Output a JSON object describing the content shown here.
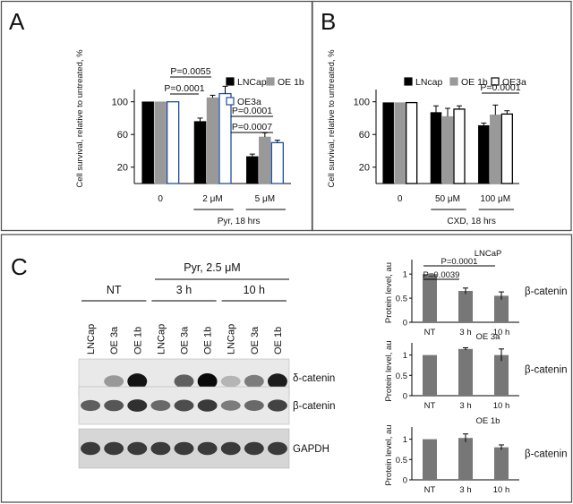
{
  "panels": {
    "A": {
      "letter": "A"
    },
    "B": {
      "letter": "B"
    },
    "C": {
      "letter": "C"
    }
  },
  "chart_data": [
    {
      "panel": "A",
      "type": "bar",
      "ylabel": "Cell survival, relative to untreated, %",
      "xlabel": "Pyr, 18 hrs",
      "categories": [
        "0",
        "2 μM",
        "5 μM"
      ],
      "yticks": [
        20,
        60,
        100
      ],
      "ylim": [
        0,
        115
      ],
      "grid": false,
      "legend_position": "top-right",
      "series": [
        {
          "name": "LNCap",
          "color": "#000000",
          "fill": "#000000",
          "values": [
            100,
            76,
            33
          ],
          "errors": [
            0,
            4,
            3
          ]
        },
        {
          "name": "OE 1b",
          "color": "#999999",
          "fill": "#999999",
          "values": [
            100,
            105,
            57
          ],
          "errors": [
            0,
            3,
            5
          ]
        },
        {
          "name": "OE3a",
          "color": "#1f4e9e",
          "fill": "#ffffff",
          "values": [
            100,
            110,
            50
          ],
          "errors": [
            0,
            9,
            3
          ]
        }
      ],
      "annotations": [
        "P=0.0055",
        "P=0.0001",
        "P=0.0001",
        "P=0.0007"
      ]
    },
    {
      "panel": "B",
      "type": "bar",
      "ylabel": "Cell survival, relative to untreated, %",
      "xlabel": "CXD, 18 hrs",
      "categories": [
        "0",
        "50 μM",
        "100 μM"
      ],
      "yticks": [
        20,
        60,
        100
      ],
      "ylim": [
        0,
        115
      ],
      "grid": false,
      "legend_position": "top",
      "series": [
        {
          "name": "LNcap",
          "color": "#000000",
          "fill": "#000000",
          "values": [
            99,
            87,
            71
          ],
          "errors": [
            0,
            8,
            3
          ]
        },
        {
          "name": "OE 1b",
          "color": "#999999",
          "fill": "#999999",
          "values": [
            99,
            82,
            84
          ],
          "errors": [
            0,
            10,
            12
          ]
        },
        {
          "name": "OE3a",
          "color": "#000000",
          "fill": "#ffffff",
          "values": [
            99,
            91,
            85
          ],
          "errors": [
            0,
            4,
            4
          ]
        }
      ],
      "annotations": [
        "P=0.0001"
      ]
    },
    {
      "panel": "C-top",
      "type": "bar",
      "title": "LNCaP",
      "ylabel": "Protein level, au",
      "side_label": "β-catenin",
      "categories": [
        "NT",
        "3 h",
        "10 h"
      ],
      "yticks": [
        "0",
        "0.5",
        "1"
      ],
      "ylim": [
        0,
        1.3
      ],
      "series": [
        {
          "color": "#777777",
          "values": [
            1.0,
            0.65,
            0.55
          ],
          "errors": [
            0,
            0.06,
            0.08
          ]
        }
      ],
      "annotations": [
        "P=0.0001",
        "P=0.0039"
      ]
    },
    {
      "panel": "C-mid",
      "type": "bar",
      "title": "OE 3a",
      "ylabel": "Protein level, au",
      "side_label": "β-catenin",
      "categories": [
        "NT",
        "3 h",
        "10 h"
      ],
      "yticks": [
        "0",
        "0.5",
        "1"
      ],
      "ylim": [
        0,
        1.3
      ],
      "series": [
        {
          "color": "#777777",
          "values": [
            1.0,
            1.15,
            1.0
          ],
          "errors": [
            0,
            0.03,
            0.15
          ]
        }
      ]
    },
    {
      "panel": "C-bot",
      "type": "bar",
      "title": "OE 1b",
      "ylabel": "Protein level, au",
      "side_label": "β-catenin",
      "categories": [
        "NT",
        "3 h",
        "10 h"
      ],
      "yticks": [
        "0",
        "0.5",
        "1"
      ],
      "ylim": [
        0,
        1.3
      ],
      "series": [
        {
          "color": "#777777",
          "values": [
            1.0,
            1.03,
            0.8
          ],
          "errors": [
            0,
            0.1,
            0.06
          ]
        }
      ]
    }
  ],
  "blot": {
    "treatment": "Pyr, 2.5 μM",
    "groups": [
      "NT",
      "3 h",
      "10 h"
    ],
    "lanes": [
      "LNCap",
      "OE 3a",
      "OE 1b",
      "LNCap",
      "OE 3a",
      "OE 1b",
      "LNCap",
      "OE 3a",
      "OE 1b"
    ],
    "bands": [
      {
        "label": "δ-catenin",
        "intensity": [
          0.0,
          0.25,
          0.95,
          0.0,
          0.55,
          1.0,
          0.1,
          0.4,
          0.9
        ]
      },
      {
        "label": "β-catenin",
        "intensity": [
          0.55,
          0.6,
          0.8,
          0.5,
          0.65,
          0.75,
          0.4,
          0.5,
          0.7
        ]
      },
      {
        "label": "GAPDH",
        "intensity": [
          0.75,
          0.75,
          0.75,
          0.75,
          0.75,
          0.75,
          0.75,
          0.75,
          0.75
        ]
      }
    ]
  }
}
